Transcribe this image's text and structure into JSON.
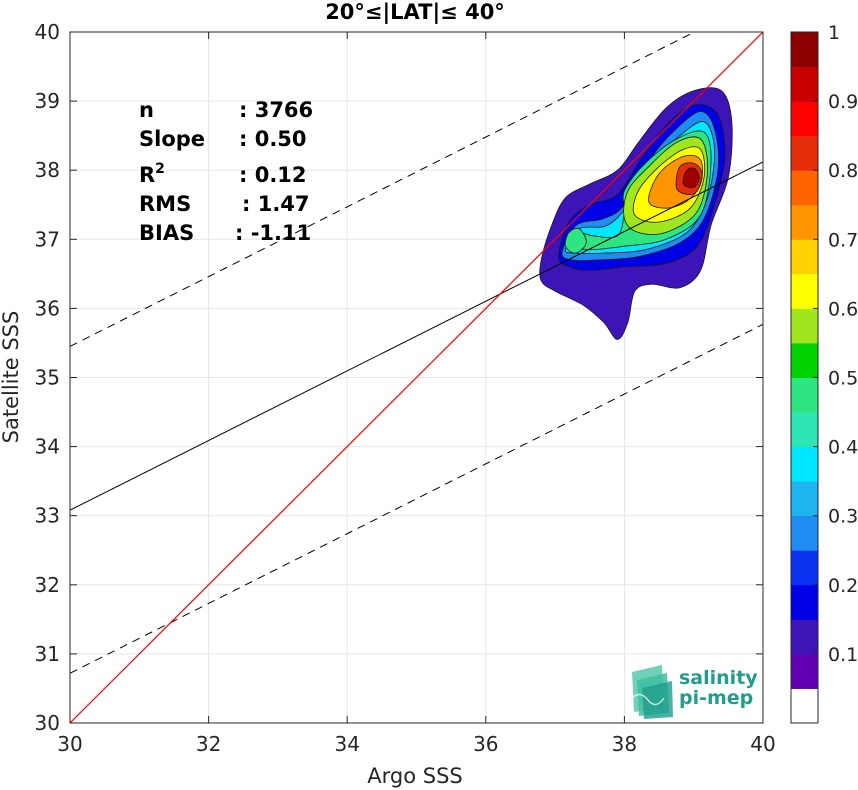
{
  "chart_data": {
    "type": "scatter",
    "title": "20°≤|LAT|≤ 40°",
    "xlabel": "Argo SSS",
    "ylabel": "Satellite SSS",
    "xlim": [
      30,
      40
    ],
    "ylim": [
      30,
      40
    ],
    "xticks": [
      "30",
      "32",
      "34",
      "36",
      "38",
      "40"
    ],
    "yticks": [
      "30",
      "31",
      "32",
      "33",
      "34",
      "35",
      "36",
      "37",
      "38",
      "39",
      "40"
    ],
    "grid": true,
    "stats": [
      {
        "label": "n",
        "value": ": 3766"
      },
      {
        "label": "Slope",
        "value": ": 0.50"
      },
      {
        "label": "R",
        "sup": "2",
        "value": ": 0.12"
      },
      {
        "label": "RMS",
        "value": ": 1.47"
      },
      {
        "label": "BIAS",
        "value": ": -1.11"
      }
    ],
    "lines": {
      "identity": {
        "x": [
          30,
          40
        ],
        "y": [
          30,
          40
        ],
        "color": "#ff0000"
      },
      "regression": {
        "x": [
          30,
          40
        ],
        "y": [
          33.08,
          38.12
        ],
        "color": "#000000"
      },
      "upper_dashed": {
        "x": [
          30,
          40
        ],
        "y": [
          35.45,
          40.5
        ],
        "color": "#000000"
      },
      "lower_dashed": {
        "x": [
          30,
          40
        ],
        "y": [
          30.72,
          35.77
        ],
        "color": "#000000"
      }
    },
    "density_contours": [
      {
        "level": 0.05,
        "color": "#3c14b8",
        "points": [
          [
            36.8,
            36.7
          ],
          [
            36.95,
            37.2
          ],
          [
            37.15,
            37.6
          ],
          [
            37.5,
            37.8
          ],
          [
            37.9,
            38.0
          ],
          [
            38.2,
            38.4
          ],
          [
            38.6,
            38.9
          ],
          [
            39.0,
            39.15
          ],
          [
            39.4,
            39.15
          ],
          [
            39.55,
            38.7
          ],
          [
            39.5,
            37.9
          ],
          [
            39.25,
            37.2
          ],
          [
            39.1,
            36.55
          ],
          [
            38.8,
            36.3
          ],
          [
            38.4,
            36.35
          ],
          [
            38.15,
            36.25
          ],
          [
            38.05,
            35.8
          ],
          [
            37.9,
            35.55
          ],
          [
            37.7,
            35.8
          ],
          [
            37.4,
            36.05
          ],
          [
            37.0,
            36.25
          ],
          [
            36.8,
            36.4
          ]
        ]
      },
      {
        "level": 0.15,
        "color": "#0000e6",
        "points": [
          [
            37.05,
            36.75
          ],
          [
            37.2,
            37.25
          ],
          [
            37.5,
            37.5
          ],
          [
            37.9,
            37.65
          ],
          [
            38.3,
            38.25
          ],
          [
            38.7,
            38.75
          ],
          [
            39.05,
            38.95
          ],
          [
            39.35,
            38.8
          ],
          [
            39.45,
            38.2
          ],
          [
            39.3,
            37.5
          ],
          [
            39.05,
            36.9
          ],
          [
            38.6,
            36.65
          ],
          [
            38.0,
            36.6
          ],
          [
            37.5,
            36.55
          ],
          [
            37.2,
            36.6
          ]
        ]
      },
      {
        "level": 0.25,
        "color": "#1e8cf0",
        "points": [
          [
            37.1,
            36.8
          ],
          [
            37.3,
            37.2
          ],
          [
            37.7,
            37.3
          ],
          [
            38.0,
            37.5
          ],
          [
            38.4,
            38.2
          ],
          [
            38.75,
            38.6
          ],
          [
            39.1,
            38.85
          ],
          [
            39.3,
            38.6
          ],
          [
            39.35,
            38.0
          ],
          [
            39.15,
            37.3
          ],
          [
            38.8,
            36.95
          ],
          [
            38.2,
            36.75
          ],
          [
            37.6,
            36.7
          ],
          [
            37.25,
            36.7
          ]
        ]
      },
      {
        "level": 0.35,
        "color": "#00e6ff",
        "points": [
          [
            37.15,
            36.85
          ],
          [
            37.35,
            37.15
          ],
          [
            37.75,
            37.2
          ],
          [
            38.05,
            37.5
          ],
          [
            38.45,
            38.15
          ],
          [
            38.8,
            38.5
          ],
          [
            39.15,
            38.7
          ],
          [
            39.3,
            38.3
          ],
          [
            39.2,
            37.6
          ],
          [
            38.9,
            37.1
          ],
          [
            38.3,
            36.85
          ],
          [
            37.7,
            36.8
          ],
          [
            37.3,
            36.8
          ]
        ]
      },
      {
        "level": 0.45,
        "color": "#2ee681",
        "points": [
          [
            37.15,
            36.9
          ],
          [
            37.3,
            37.1
          ],
          [
            37.55,
            37.05
          ],
          [
            37.9,
            37.05
          ],
          [
            38.0,
            37.4
          ],
          [
            38.0,
            37.7
          ],
          [
            38.3,
            38.1
          ],
          [
            38.75,
            38.45
          ],
          [
            39.15,
            38.55
          ],
          [
            39.25,
            38.1
          ],
          [
            39.1,
            37.35
          ],
          [
            38.6,
            37.0
          ],
          [
            38.0,
            36.9
          ],
          [
            37.5,
            36.85
          ]
        ]
      },
      {
        "level": 0.55,
        "color": "#a0e61e",
        "points": [
          [
            38.0,
            37.3
          ],
          [
            38.05,
            37.7
          ],
          [
            38.35,
            38.05
          ],
          [
            38.75,
            38.4
          ],
          [
            39.1,
            38.45
          ],
          [
            39.2,
            38.0
          ],
          [
            39.05,
            37.4
          ],
          [
            38.6,
            37.1
          ],
          [
            38.2,
            37.1
          ]
        ]
      },
      {
        "level": 0.65,
        "color": "#ffff00",
        "points": [
          [
            38.15,
            37.35
          ],
          [
            38.2,
            37.7
          ],
          [
            38.5,
            38.05
          ],
          [
            38.85,
            38.3
          ],
          [
            39.1,
            38.3
          ],
          [
            39.15,
            37.9
          ],
          [
            38.95,
            37.45
          ],
          [
            38.5,
            37.25
          ]
        ]
      },
      {
        "level": 0.75,
        "color": "#ff9600",
        "points": [
          [
            38.35,
            37.55
          ],
          [
            38.5,
            37.95
          ],
          [
            38.85,
            38.2
          ],
          [
            39.1,
            38.15
          ],
          [
            39.1,
            37.8
          ],
          [
            38.9,
            37.55
          ],
          [
            38.6,
            37.45
          ]
        ]
      },
      {
        "level": 0.85,
        "color": "#e62d0a",
        "points": [
          [
            38.75,
            37.75
          ],
          [
            38.8,
            38.05
          ],
          [
            39.0,
            38.1
          ],
          [
            39.12,
            37.95
          ],
          [
            39.05,
            37.7
          ],
          [
            38.9,
            37.65
          ]
        ]
      },
      {
        "level": 0.95,
        "color": "#a00000",
        "points": [
          [
            38.85,
            37.8
          ],
          [
            38.9,
            38.0
          ],
          [
            39.02,
            38.02
          ],
          [
            39.08,
            37.88
          ],
          [
            39.0,
            37.75
          ]
        ]
      },
      {
        "level": 0.5,
        "color": "#2ee681",
        "points": [
          [
            37.15,
            36.9
          ],
          [
            37.2,
            37.1
          ],
          [
            37.35,
            37.15
          ],
          [
            37.45,
            36.95
          ],
          [
            37.3,
            36.8
          ]
        ]
      }
    ],
    "colorbar": {
      "min": 0,
      "max": 1,
      "tick_labels": [
        "0.1",
        "0.2",
        "0.3",
        "0.4",
        "0.5",
        "0.6",
        "0.7",
        "0.8",
        "0.9",
        "1"
      ],
      "tick_values": [
        0.1,
        0.2,
        0.3,
        0.4,
        0.5,
        0.6,
        0.7,
        0.8,
        0.9,
        1.0
      ],
      "colors": [
        "#ffffff",
        "#6400b4",
        "#3c14b8",
        "#0000e6",
        "#0a32f0",
        "#1e8cf0",
        "#1eb4f0",
        "#00e6ff",
        "#2ee6b4",
        "#2ee681",
        "#00d200",
        "#a0e61e",
        "#ffff00",
        "#ffd200",
        "#ff9600",
        "#ff6400",
        "#e62d0a",
        "#ff0000",
        "#c80000",
        "#8c0000"
      ]
    }
  },
  "logo": {
    "line1": "salinity",
    "line2": "pi-mep"
  }
}
